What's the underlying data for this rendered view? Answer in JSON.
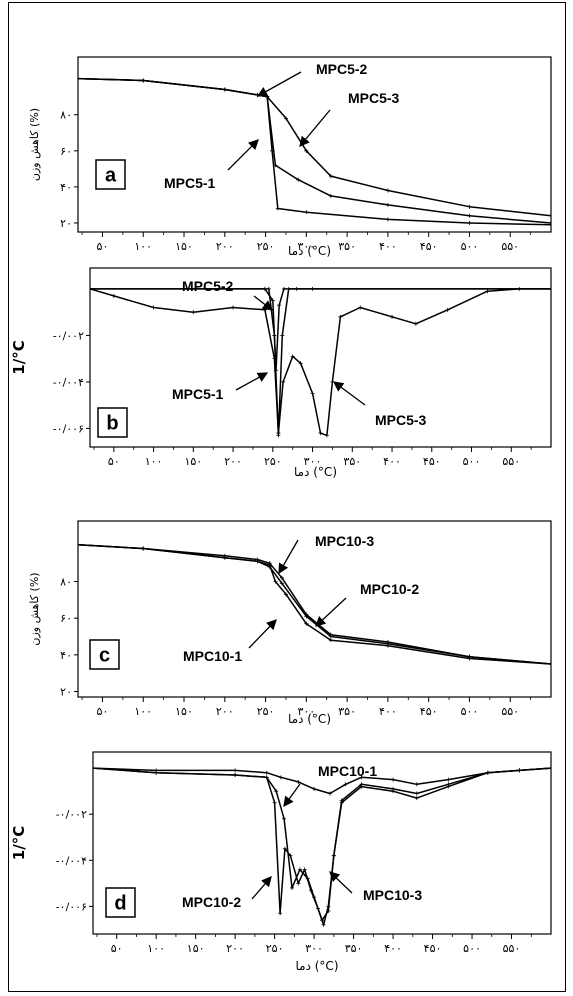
{
  "colors": {
    "line": "#000000",
    "frame": "#000000",
    "background": "#ffffff"
  },
  "chart_data": [
    {
      "type": "line",
      "panel_letter": "a",
      "ylabel": "کاهش وزن (%)",
      "xlabel": "دما (°C)",
      "xlim": [
        20,
        600
      ],
      "ylim": [
        15,
        112
      ],
      "x_ticks": [
        50,
        100,
        150,
        200,
        250,
        300,
        350,
        400,
        450,
        500,
        550
      ],
      "x_tick_labels": [
        "۵۰",
        "۱۰۰",
        "۱۵۰",
        "۲۰۰",
        "۲۵۰",
        "۳۰۰",
        "۳۵۰",
        "۴۰۰",
        "۴۵۰",
        "۵۰۰",
        "۵۵۰"
      ],
      "y_ticks": [
        20,
        40,
        60,
        80
      ],
      "y_tick_labels": [
        "۲۰",
        "۴۰",
        "۶۰",
        "۸۰"
      ],
      "series": [
        {
          "name": "MPC5-1",
          "x": [
            20,
            100,
            200,
            240,
            252,
            258,
            265,
            300,
            400,
            500,
            600
          ],
          "values": [
            100,
            99,
            94,
            91,
            90,
            60,
            28,
            26,
            22,
            20,
            19
          ]
        },
        {
          "name": "MPC5-2",
          "x": [
            20,
            100,
            200,
            240,
            252,
            262,
            290,
            330,
            400,
            500,
            600
          ],
          "values": [
            100,
            99,
            94,
            91,
            90,
            52,
            44,
            35,
            30,
            24,
            20
          ]
        },
        {
          "name": "MPC5-3",
          "x": [
            20,
            100,
            200,
            240,
            252,
            275,
            300,
            330,
            400,
            500,
            600
          ],
          "values": [
            100,
            99,
            94,
            91,
            90,
            78,
            60,
            46,
            38,
            29,
            24
          ]
        }
      ],
      "annotations": [
        "MPC5-2",
        "MPC5-3",
        "MPC5-1"
      ]
    },
    {
      "type": "line",
      "panel_letter": "b",
      "ylabel": "1/°C",
      "xlabel": "دما (°C)",
      "xlim": [
        20,
        600
      ],
      "ylim": [
        -0.0068,
        0.0009
      ],
      "x_ticks": [
        50,
        100,
        150,
        200,
        250,
        300,
        350,
        400,
        450,
        500,
        550
      ],
      "x_tick_labels": [
        "۵۰",
        "۱۰۰",
        "۱۵۰",
        "۲۰۰",
        "۲۵۰",
        "۳۰۰",
        "۳۵۰",
        "۴۰۰",
        "۴۵۰",
        "۵۰۰",
        "۵۵۰"
      ],
      "y_ticks": [
        -0.002,
        -0.004,
        -0.006
      ],
      "y_tick_labels": [
        "-۰/۰۰۲",
        "-۰/۰۰۴",
        "-۰/۰۰۶"
      ],
      "series": [
        {
          "name": "MPC5-1",
          "x": [
            20,
            240,
            250,
            254,
            258,
            264,
            280,
            600
          ],
          "values": [
            0,
            0,
            -0.0005,
            -0.0035,
            -0.0007,
            0,
            0,
            0
          ]
        },
        {
          "name": "MPC5-2",
          "x": [
            20,
            245,
            252,
            257,
            262,
            270,
            300,
            600
          ],
          "values": [
            0,
            0,
            -0.002,
            -0.0063,
            -0.002,
            0,
            0,
            0
          ]
        },
        {
          "name": "MPC5-3",
          "x": [
            20,
            50,
            100,
            150,
            200,
            240,
            252,
            257,
            263,
            275,
            285,
            300,
            310,
            318,
            325,
            335,
            360,
            400,
            430,
            470,
            520,
            560,
            600
          ],
          "values": [
            0,
            -0.0003,
            -0.0008,
            -0.001,
            -0.0008,
            -0.0009,
            -0.003,
            -0.0062,
            -0.004,
            -0.0029,
            -0.0032,
            -0.0045,
            -0.0062,
            -0.0063,
            -0.004,
            -0.0012,
            -0.0008,
            -0.0012,
            -0.0015,
            -0.0009,
            -0.0001,
            0,
            0
          ]
        }
      ],
      "annotations": [
        "MPC5-2",
        "MPC5-1",
        "MPC5-3"
      ]
    },
    {
      "type": "line",
      "panel_letter": "c",
      "ylabel": "کاهش وزن (%)",
      "xlabel": "دما (°C)",
      "xlim": [
        20,
        600
      ],
      "ylim": [
        17,
        113
      ],
      "x_ticks": [
        50,
        100,
        150,
        200,
        250,
        300,
        350,
        400,
        450,
        500,
        550
      ],
      "x_tick_labels": [
        "۵۰",
        "۱۰۰",
        "۱۵۰",
        "۲۰۰",
        "۲۵۰",
        "۳۰۰",
        "۳۵۰",
        "۴۰۰",
        "۴۵۰",
        "۵۰۰",
        "۵۵۰"
      ],
      "y_ticks": [
        20,
        40,
        60,
        80
      ],
      "y_tick_labels": [
        "۲۰",
        "۴۰",
        "۶۰",
        "۸۰"
      ],
      "series": [
        {
          "name": "MPC10-1",
          "x": [
            20,
            100,
            200,
            240,
            255,
            262,
            275,
            300,
            330,
            400,
            500,
            600
          ],
          "values": [
            100,
            98,
            93,
            91,
            89,
            80,
            73,
            57,
            48,
            45,
            38,
            35
          ]
        },
        {
          "name": "MPC10-2",
          "x": [
            20,
            100,
            200,
            240,
            255,
            270,
            300,
            330,
            400,
            500,
            600
          ],
          "values": [
            100,
            98,
            93,
            91,
            88,
            79,
            61,
            50,
            46,
            39,
            35
          ]
        },
        {
          "name": "MPC10-3",
          "x": [
            20,
            100,
            200,
            240,
            255,
            270,
            300,
            330,
            400,
            500,
            600
          ],
          "values": [
            100,
            98,
            94,
            92,
            90,
            82,
            62,
            51,
            47,
            39,
            35
          ]
        }
      ],
      "annotations": [
        "MPC10-3",
        "MPC10-2",
        "MPC10-1"
      ]
    },
    {
      "type": "line",
      "panel_letter": "d",
      "ylabel": "1/°C",
      "xlabel": "دما (°C)",
      "xlim": [
        20,
        600
      ],
      "ylim": [
        -0.0072,
        0.0007
      ],
      "x_ticks": [
        50,
        100,
        150,
        200,
        250,
        300,
        350,
        400,
        450,
        500,
        550
      ],
      "x_tick_labels": [
        "۵۰",
        "۱۰۰",
        "۱۵۰",
        "۲۰۰",
        "۲۵۰",
        "۳۰۰",
        "۳۵۰",
        "۴۰۰",
        "۴۵۰",
        "۵۰۰",
        "۵۵۰"
      ],
      "y_ticks": [
        -0.002,
        -0.004,
        -0.006
      ],
      "y_tick_labels": [
        "-۰/۰۰۲",
        "-۰/۰۰۴",
        "-۰/۰۰۶"
      ],
      "series": [
        {
          "name": "MPC10-1",
          "x": [
            20,
            100,
            200,
            240,
            258,
            280,
            300,
            320,
            340,
            360,
            400,
            430,
            470,
            520,
            560,
            600
          ],
          "values": [
            0,
            -0.0001,
            -0.0001,
            -0.0002,
            -0.0004,
            -0.0006,
            -0.0009,
            -0.0011,
            -0.0007,
            -0.0004,
            -0.0005,
            -0.0007,
            -0.0005,
            -0.0002,
            -0.0001,
            0
          ]
        },
        {
          "name": "MPC10-2",
          "x": [
            20,
            100,
            200,
            240,
            250,
            257,
            263,
            270,
            280,
            288,
            296,
            305,
            312,
            318,
            325,
            335,
            360,
            400,
            430,
            470,
            520,
            560,
            600
          ],
          "values": [
            0,
            -0.0002,
            -0.0003,
            -0.0004,
            -0.0015,
            -0.0063,
            -0.0035,
            -0.0038,
            -0.005,
            -0.0044,
            -0.0053,
            -0.0061,
            -0.0068,
            -0.006,
            -0.0038,
            -0.0015,
            -0.0008,
            -0.001,
            -0.0013,
            -0.0008,
            -0.0002,
            -0.0001,
            0
          ]
        },
        {
          "name": "MPC10-3",
          "x": [
            20,
            100,
            200,
            240,
            252,
            262,
            272,
            282,
            292,
            300,
            310,
            318,
            325,
            335,
            360,
            400,
            430,
            470,
            520,
            560,
            600
          ],
          "values": [
            0,
            -0.0002,
            -0.0003,
            -0.0004,
            -0.001,
            -0.0022,
            -0.0052,
            -0.0044,
            -0.0048,
            -0.0056,
            -0.0066,
            -0.0062,
            -0.0038,
            -0.0014,
            -0.0007,
            -0.0009,
            -0.0011,
            -0.0007,
            -0.0002,
            -0.0001,
            0
          ]
        }
      ],
      "annotations": [
        "MPC10-1",
        "MPC10-2",
        "MPC10-3"
      ]
    }
  ]
}
